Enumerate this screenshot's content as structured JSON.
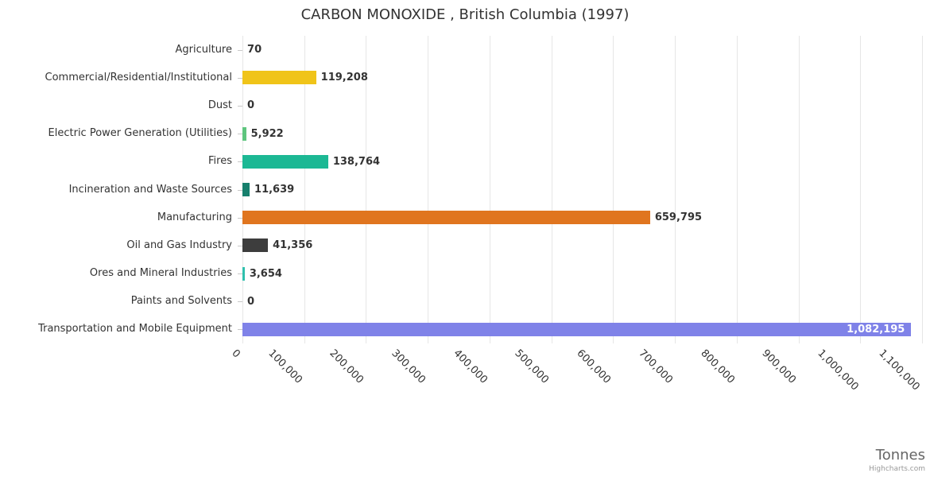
{
  "credits": "Highcharts.com",
  "chart_data": {
    "type": "bar",
    "orientation": "horizontal",
    "title": "CARBON MONOXIDE , British Columbia (1997)",
    "xlabel": "Tonnes",
    "ylabel": "",
    "grid": true,
    "legend": false,
    "xlim": [
      0,
      1100000
    ],
    "x_tick_interval": 100000,
    "x_tick_labels": [
      "0",
      "100,000",
      "200,000",
      "300,000",
      "400,000",
      "500,000",
      "600,000",
      "700,000",
      "800,000",
      "900,000",
      "1,000,000",
      "1,100,000"
    ],
    "categories": [
      "Agriculture",
      "Commercial/Residential/Institutional",
      "Dust",
      "Electric Power Generation (Utilities)",
      "Fires",
      "Incineration and Waste Sources",
      "Manufacturing",
      "Oil and Gas Industry",
      "Ores and Mineral Industries",
      "Paints and Solvents",
      "Transportation and Mobile Equipment"
    ],
    "values": [
      70,
      119208,
      0,
      5922,
      138764,
      11639,
      659795,
      41356,
      3654,
      0,
      1082195
    ],
    "value_labels": [
      "70",
      "119,208",
      "0",
      "5,922",
      "138,764",
      "11,639",
      "659,795",
      "41,356",
      "3,654",
      "0",
      "1,082,195"
    ],
    "bar_colors": [
      "#7cb5ec",
      "#f0c419",
      "#999999",
      "#5ec57e",
      "#1cb894",
      "#17806d",
      "#e0751f",
      "#3d3d3d",
      "#2fc0ad",
      "#999999",
      "#7f82e8"
    ],
    "datalabel_color": "#333333",
    "inside_datalabel_color": "#ffffff"
  }
}
